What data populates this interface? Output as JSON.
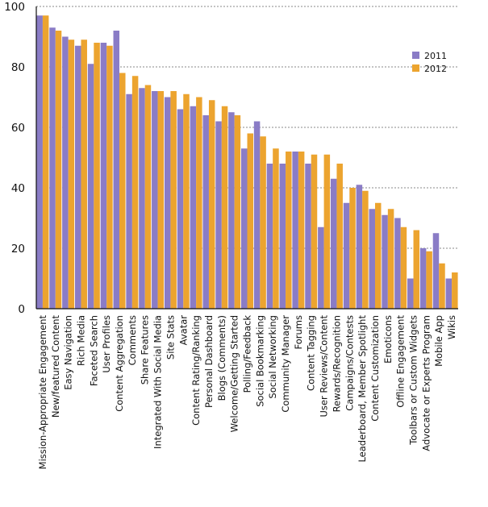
{
  "chart_data": {
    "type": "bar",
    "title": "",
    "xlabel": "",
    "ylabel": "",
    "ylim": [
      0,
      100
    ],
    "yticks": [
      0,
      20,
      40,
      60,
      80,
      100
    ],
    "grid": "dotted horizontal",
    "legend_position": "top-right",
    "categories": [
      "Mission-Appropriate Engagement",
      "New/featured Content",
      "Easy Navigation",
      "Rich Media",
      "Faceted Search",
      "User Profiles",
      "Content Aggregation",
      "Comments",
      "Share Features",
      "Integrated With Social Media",
      "Site Stats",
      "Avatar",
      "Content Rating/Ranking",
      "Personal Dashboard",
      "Blogs (Comments)",
      "Welcome/Getting Started",
      "Polling/Feedback",
      "Social Bookmarking",
      "Social Networking",
      "Community Manager",
      "Forums",
      "Content Tagging",
      "User Reviews/Content",
      "Rewards/Recognition",
      "Campaigns/Contests",
      "Leaderboard, Member Spotlight",
      "Content Customization",
      "Emoticons",
      "Offline Engagement",
      "Toolbars or Custom Widgets",
      "Advocate or Experts Program",
      "Mobile App",
      "Wikis"
    ],
    "series": [
      {
        "name": "2011",
        "color": "#8a7cc6",
        "values": [
          97,
          93,
          90,
          87,
          81,
          88,
          92,
          71,
          73,
          72,
          70,
          66,
          67,
          64,
          62,
          65,
          53,
          62,
          48,
          48,
          52,
          48,
          27,
          43,
          35,
          41,
          33,
          31,
          30,
          10,
          20,
          25,
          10
        ]
      },
      {
        "name": "2012",
        "color": "#eca42f",
        "values": [
          97,
          92,
          89,
          89,
          88,
          87,
          78,
          77,
          74,
          72,
          72,
          71,
          70,
          69,
          67,
          64,
          58,
          57,
          53,
          52,
          52,
          51,
          51,
          48,
          40,
          39,
          35,
          33,
          27,
          26,
          19,
          15,
          12
        ]
      }
    ]
  }
}
